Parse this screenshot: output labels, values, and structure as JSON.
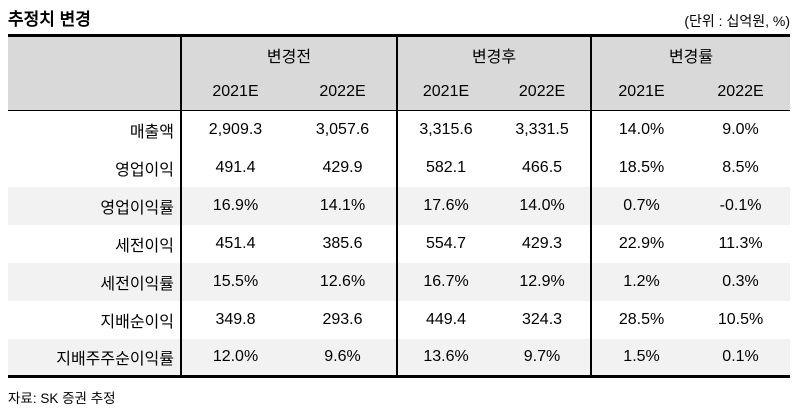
{
  "title": "추정치 변경",
  "unit_note": "(단위 : 십억원, %)",
  "source_note": "자료: SK 증권 추정",
  "colors": {
    "header_bg": "#d9d9d9",
    "stripe_bg": "#f2f2f2",
    "border": "#000000",
    "text": "#000000"
  },
  "table": {
    "groups": [
      {
        "label": "변경전"
      },
      {
        "label": "변경후"
      },
      {
        "label": "변경률"
      }
    ],
    "year_headers": [
      "2021E",
      "2022E",
      "2021E",
      "2022E",
      "2021E",
      "2022E"
    ],
    "rows": [
      {
        "label": "매출액",
        "striped": false,
        "values": [
          "2,909.3",
          "3,057.6",
          "3,315.6",
          "3,331.5",
          "14.0%",
          "9.0%"
        ]
      },
      {
        "label": "영업이익",
        "striped": false,
        "values": [
          "491.4",
          "429.9",
          "582.1",
          "466.5",
          "18.5%",
          "8.5%"
        ]
      },
      {
        "label": "영업이익률",
        "striped": true,
        "values": [
          "16.9%",
          "14.1%",
          "17.6%",
          "14.0%",
          "0.7%",
          "-0.1%"
        ]
      },
      {
        "label": "세전이익",
        "striped": false,
        "values": [
          "451.4",
          "385.6",
          "554.7",
          "429.3",
          "22.9%",
          "11.3%"
        ]
      },
      {
        "label": "세전이익률",
        "striped": true,
        "values": [
          "15.5%",
          "12.6%",
          "16.7%",
          "12.9%",
          "1.2%",
          "0.3%"
        ]
      },
      {
        "label": "지배순이익",
        "striped": false,
        "values": [
          "349.8",
          "293.6",
          "449.4",
          "324.3",
          "28.5%",
          "10.5%"
        ]
      },
      {
        "label": "지배주주순이익률",
        "striped": true,
        "values": [
          "12.0%",
          "9.6%",
          "13.6%",
          "9.7%",
          "1.5%",
          "0.1%"
        ]
      }
    ]
  }
}
